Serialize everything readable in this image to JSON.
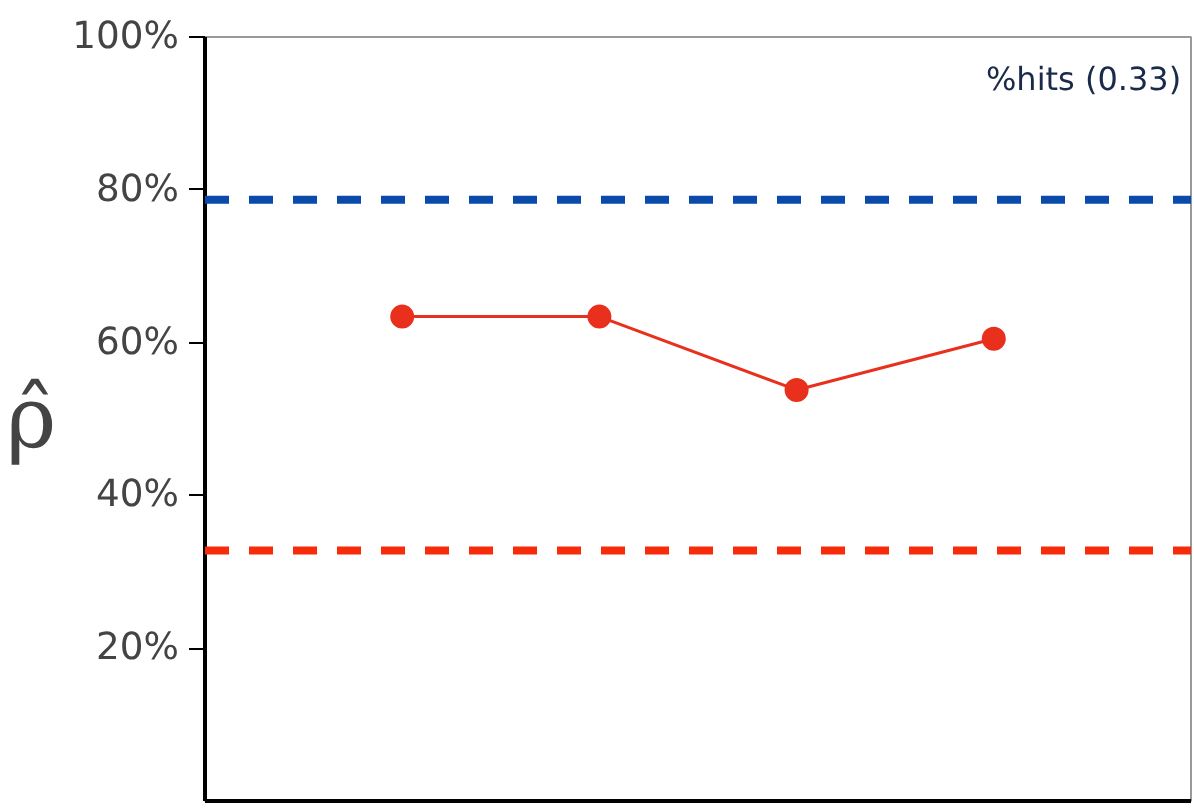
{
  "chart_data": {
    "type": "line",
    "ylabel": "ρ̂",
    "categories": [
      null,
      null,
      null,
      null
    ],
    "series": [
      {
        "color": "#e8301c",
        "values": [
          63.4,
          63.4,
          53.8,
          60.5
        ]
      }
    ],
    "marker": "circle",
    "ylim": [
      0,
      100
    ],
    "yticks": [
      {
        "value": 20,
        "label": "20%"
      },
      {
        "value": 40,
        "label": "40%"
      },
      {
        "value": 60,
        "label": "60%"
      },
      {
        "value": 80,
        "label": "80%"
      },
      {
        "value": 100,
        "label": "100%"
      }
    ],
    "ref_lines": [
      {
        "axis": "y",
        "value": 78.7,
        "color": "#0a4aa8",
        "line_style": "dashed"
      },
      {
        "axis": "y",
        "value": 32.8,
        "color": "#f72a0a",
        "line_style": "dashed"
      }
    ],
    "annotations": [
      "%hits (0.33)"
    ],
    "line_style": "solid"
  }
}
